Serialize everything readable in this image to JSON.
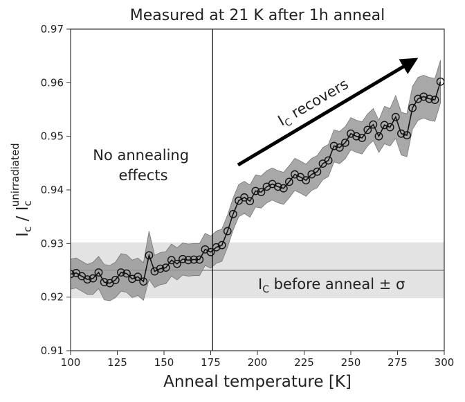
{
  "chart_data": {
    "type": "line",
    "title": "Measured at 21 K after 1h anneal",
    "xlabel": "Anneal temperature [K]",
    "ylabel": {
      "main": "I",
      "sub": "c",
      "sep": " / I",
      "sub2": "c",
      "sup2": "unirradiated"
    },
    "xlim": [
      100,
      300
    ],
    "ylim": [
      0.91,
      0.97
    ],
    "xticks": [
      100,
      125,
      150,
      175,
      200,
      225,
      250,
      275,
      300
    ],
    "yticks": [
      0.91,
      0.92,
      0.93,
      0.94,
      0.95,
      0.96,
      0.97
    ],
    "xtick_labels": [
      "100",
      "125",
      "150",
      "175",
      "200",
      "225",
      "250",
      "275",
      "300"
    ],
    "ytick_labels": [
      "0.91",
      "0.92",
      "0.93",
      "0.94",
      "0.95",
      "0.96",
      "0.97"
    ],
    "grid": false,
    "baseline": {
      "value": 0.925,
      "band": [
        0.9198,
        0.9302
      ]
    },
    "vertical_line_x": 176,
    "series": {
      "marker": "circle-open",
      "color": "#111111",
      "band_color": "#999999",
      "x": [
        100,
        103,
        106,
        109,
        112,
        115,
        118,
        121,
        124,
        127,
        130,
        133,
        136,
        139,
        142,
        145,
        148,
        151,
        154,
        157,
        160,
        163,
        166,
        169,
        172,
        175,
        178,
        181,
        184,
        187,
        190,
        193,
        196,
        199,
        202,
        205,
        208,
        211,
        214,
        217,
        220,
        223,
        226,
        229,
        232,
        235,
        238,
        241,
        244,
        247,
        250,
        253,
        256,
        259,
        262,
        265,
        268,
        271,
        274,
        277,
        280,
        283,
        286,
        289,
        292,
        295,
        298
      ],
      "y": [
        0.9243,
        0.9245,
        0.9239,
        0.9233,
        0.9235,
        0.9246,
        0.9228,
        0.9226,
        0.9232,
        0.9246,
        0.9244,
        0.9234,
        0.9238,
        0.9229,
        0.9278,
        0.9248,
        0.9253,
        0.9255,
        0.9269,
        0.9262,
        0.9271,
        0.9269,
        0.927,
        0.927,
        0.9289,
        0.9284,
        0.9293,
        0.9297,
        0.9323,
        0.9355,
        0.938,
        0.9386,
        0.9379,
        0.9398,
        0.9396,
        0.9406,
        0.9411,
        0.9406,
        0.9403,
        0.9415,
        0.9429,
        0.9424,
        0.9418,
        0.9429,
        0.9434,
        0.9449,
        0.9455,
        0.9482,
        0.9479,
        0.9488,
        0.9505,
        0.95,
        0.9497,
        0.9512,
        0.9522,
        0.95,
        0.9521,
        0.9517,
        0.9536,
        0.9505,
        0.9502,
        0.9553,
        0.957,
        0.9574,
        0.957,
        0.9568,
        0.9602
      ],
      "err": [
        0.0028,
        0.0028,
        0.0028,
        0.0028,
        0.003,
        0.003,
        0.0033,
        0.0033,
        0.0033,
        0.0035,
        0.0035,
        0.0035,
        0.0035,
        0.0035,
        0.0045,
        0.003,
        0.003,
        0.003,
        0.003,
        0.003,
        0.003,
        0.003,
        0.003,
        0.003,
        0.003,
        0.003,
        0.003,
        0.003,
        0.003,
        0.003,
        0.003,
        0.003,
        0.003,
        0.003,
        0.003,
        0.003,
        0.003,
        0.003,
        0.003,
        0.003,
        0.003,
        0.003,
        0.003,
        0.003,
        0.003,
        0.003,
        0.003,
        0.003,
        0.003,
        0.003,
        0.003,
        0.003,
        0.003,
        0.003,
        0.003,
        0.003,
        0.0035,
        0.0035,
        0.004,
        0.004,
        0.004,
        0.004,
        0.004,
        0.004,
        0.004,
        0.004,
        0.004
      ]
    },
    "annotations": {
      "no_annealing": [
        "No annealing",
        "effects"
      ],
      "recovers": {
        "main": "I",
        "sub": "C",
        "rest": " recovers"
      },
      "before_anneal": {
        "main": "I",
        "sub": "C",
        "rest": " before anneal ± σ"
      }
    }
  }
}
